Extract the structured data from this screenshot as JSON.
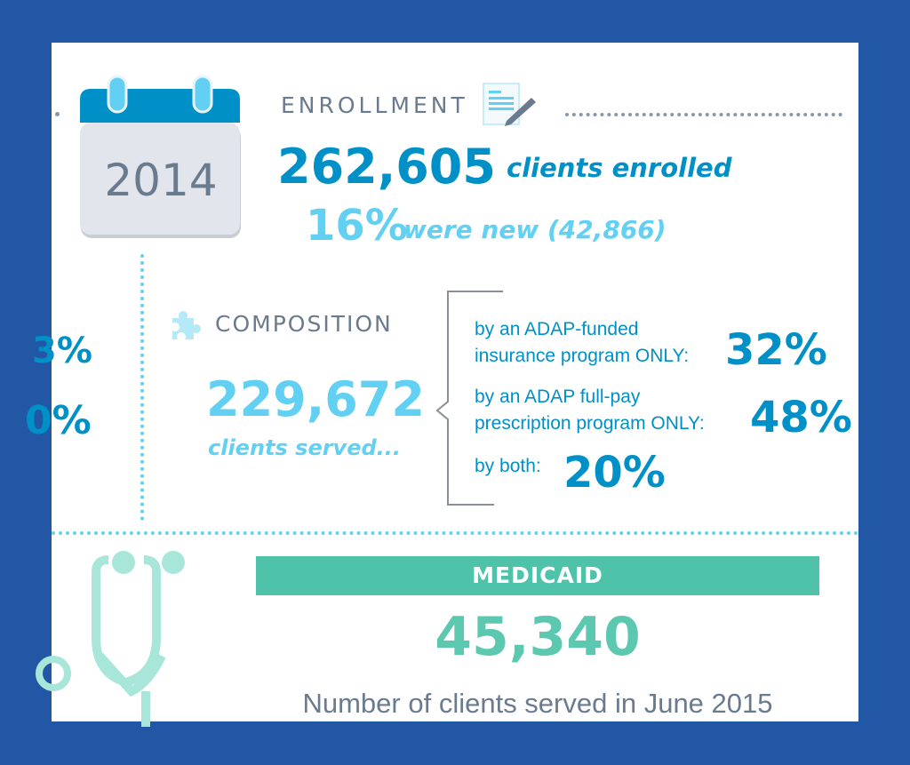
{
  "colors": {
    "frame": "#2257a6",
    "dark_blue": "#0090c8",
    "light_blue": "#62d0f2",
    "grey": "#6b7b8f",
    "teal": "#4fc2aa",
    "light_teal": "#a8e6d9"
  },
  "calendar": {
    "icon": "calendar-icon",
    "year": "2014"
  },
  "enrollment": {
    "header": "ENROLLMENT",
    "icon": "document-pen-icon",
    "total": "262,605",
    "total_label": "clients enrolled",
    "new_pct": "16%",
    "new_label": "were new (42,866)"
  },
  "left_partial": {
    "value_1": "3%",
    "value_2": "0%"
  },
  "composition": {
    "header": "COMPOSITION",
    "icon": "puzzle-piece-icon",
    "total": "229,672",
    "total_label": "clients served...",
    "items": [
      {
        "line1": "by an ADAP-funded",
        "line2": "insurance program ONLY:",
        "pct": "32%"
      },
      {
        "line1": "by an ADAP full-pay",
        "line2": "prescription program ONLY:",
        "pct": "48%"
      },
      {
        "line1": "by both:",
        "pct": "20%"
      }
    ]
  },
  "medicaid": {
    "icon": "stethoscope-icon",
    "header": "MEDICAID",
    "value": "45,340",
    "caption": "Number of clients served in June 2015"
  }
}
